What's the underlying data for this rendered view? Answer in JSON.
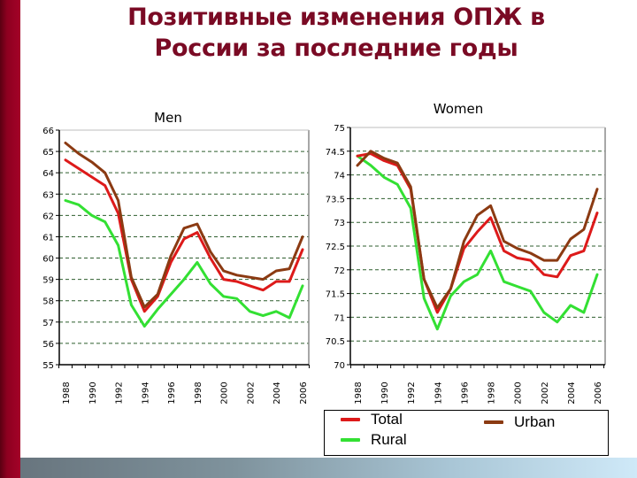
{
  "slide": {
    "title_line1": "Позитивные изменения ОПЖ в",
    "title_line2": "России за последние годы"
  },
  "colors": {
    "total": "#dd1a1a",
    "urban": "#8b3a12",
    "rural": "#33e033",
    "grid": "#2f5f2f",
    "title": "#7a0a24",
    "left_bar": "#8e0020"
  },
  "legend": {
    "items": [
      {
        "label": "Total",
        "color": "#dd1a1a"
      },
      {
        "label": "Rural",
        "color": "#33e033"
      },
      {
        "label": "Urban",
        "color": "#8b3a12"
      }
    ]
  },
  "chart_data": [
    {
      "type": "line",
      "title": "Men",
      "xlabel": "",
      "ylabel": "",
      "ylim": [
        55,
        66
      ],
      "yticks": [
        55,
        56,
        57,
        58,
        59,
        60,
        61,
        62,
        63,
        64,
        65,
        66
      ],
      "xtick_labels": [
        "1988",
        "1990",
        "1992",
        "1994",
        "1996",
        "1998",
        "2000",
        "2002",
        "2004",
        "2006"
      ],
      "x": [
        1988,
        1989,
        1990,
        1991,
        1992,
        1993,
        1994,
        1995,
        1996,
        1997,
        1998,
        1999,
        2000,
        2001,
        2002,
        2003,
        2004,
        2005,
        2006
      ],
      "grid": true,
      "series": [
        {
          "name": "Total",
          "values": [
            64.6,
            64.2,
            63.8,
            63.4,
            62.1,
            59.0,
            57.5,
            58.2,
            59.8,
            60.9,
            61.2,
            60.0,
            59.0,
            58.9,
            58.7,
            58.5,
            58.9,
            58.9,
            60.4
          ]
        },
        {
          "name": "Urban",
          "values": [
            65.4,
            64.9,
            64.5,
            64.0,
            62.7,
            59.1,
            57.7,
            58.3,
            60.1,
            61.4,
            61.6,
            60.3,
            59.4,
            59.2,
            59.1,
            59.0,
            59.4,
            59.5,
            61.0
          ]
        },
        {
          "name": "Rural",
          "values": [
            62.7,
            62.5,
            62.0,
            61.7,
            60.6,
            57.8,
            56.8,
            57.6,
            58.3,
            59.0,
            59.8,
            58.8,
            58.2,
            58.1,
            57.5,
            57.3,
            57.5,
            57.2,
            58.7
          ]
        }
      ]
    },
    {
      "type": "line",
      "title": "Women",
      "xlabel": "",
      "ylabel": "",
      "ylim": [
        70,
        75
      ],
      "yticks": [
        70,
        70.5,
        71,
        71.5,
        72,
        72.5,
        73,
        73.5,
        74,
        74.5,
        75
      ],
      "xtick_labels": [
        "1988",
        "1990",
        "1992",
        "1994",
        "1996",
        "1998",
        "2000",
        "2002",
        "2004",
        "2006"
      ],
      "x": [
        1988,
        1989,
        1990,
        1991,
        1992,
        1993,
        1994,
        1995,
        1996,
        1997,
        1998,
        1999,
        2000,
        2001,
        2002,
        2003,
        2004,
        2005,
        2006
      ],
      "grid": true,
      "series": [
        {
          "name": "Total",
          "values": [
            74.4,
            74.45,
            74.3,
            74.2,
            73.7,
            71.8,
            71.1,
            71.6,
            72.45,
            72.8,
            73.1,
            72.4,
            72.25,
            72.2,
            71.9,
            71.85,
            72.3,
            72.4,
            73.2
          ]
        },
        {
          "name": "Urban",
          "values": [
            74.2,
            74.5,
            74.35,
            74.25,
            73.75,
            71.8,
            71.2,
            71.6,
            72.6,
            73.15,
            73.35,
            72.6,
            72.45,
            72.35,
            72.2,
            72.2,
            72.65,
            72.85,
            73.7
          ]
        },
        {
          "name": "Rural",
          "values": [
            74.4,
            74.2,
            73.95,
            73.8,
            73.3,
            71.4,
            70.75,
            71.45,
            71.75,
            71.9,
            72.4,
            71.75,
            71.65,
            71.55,
            71.1,
            70.9,
            71.25,
            71.1,
            71.9
          ]
        }
      ],
      "legend_position": "bottom"
    }
  ]
}
